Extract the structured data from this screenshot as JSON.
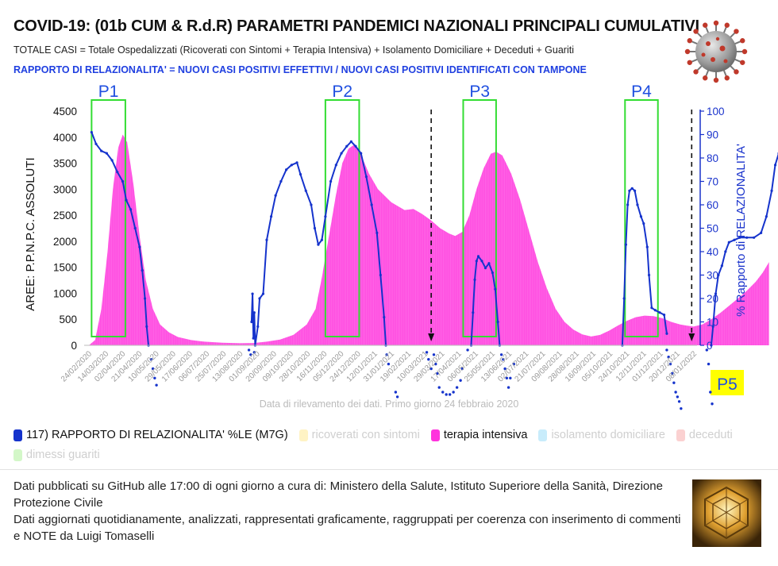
{
  "header": {
    "title": "COVID-19: (01b CUM & R.d.R) PARAMETRI PANDEMICI NAZIONALI PRINCIPALI CUMULATIVI",
    "subtitle": "TOTALE CASI = Totale Ospedalizzati (Ricoverati con Sintomi + Terapia Intensiva) + Isolamento Domiciliare + Deceduti + Guariti",
    "subtitle2": "RAPPORTO DI RELAZIONALITA' = NUOVI CASI POSITIVI EFFETTIVI / NUOVI CASI POSITIVI IDENTIFICATI CON TAMPONE",
    "virus_icon": "coronavirus-icon"
  },
  "chart_data": {
    "type": "area",
    "xlabel": "Data di rilevamento dei dati. Primo giorno 24 febbraio 2020",
    "ylabel_left": "AREE: P.P.N.P.C. ASSOLUTI",
    "ylabel_right": "% Rapporto di RELAZIONALITA'",
    "ylim_left": [
      0,
      4500
    ],
    "ylim_right": [
      0,
      100
    ],
    "yticks_left": [
      "0",
      "500",
      "1000",
      "1500",
      "2000",
      "2500",
      "3000",
      "3500",
      "4000",
      "4500"
    ],
    "yticks_right": [
      "0",
      "10",
      "20",
      "30",
      "40",
      "50",
      "60",
      "70",
      "80",
      "90",
      "100"
    ],
    "x_tick_labels": [
      "24/02/2020",
      "14/03/2020",
      "02/04/2020",
      "21/04/2020",
      "10/05/2020",
      "29/05/2020",
      "17/06/2020",
      "06/07/2020",
      "25/07/2020",
      "13/08/2020",
      "01/09/2020",
      "20/09/2020",
      "09/10/2020",
      "28/10/2020",
      "16/11/2020",
      "05/12/2020",
      "24/12/2020",
      "12/01/2021",
      "31/01/2021",
      "19/02/2021",
      "10/03/2021",
      "29/03/2021",
      "17/04/2021",
      "06/05/2021",
      "25/05/2021",
      "13/06/2021",
      "02/07/2021",
      "21/07/2021",
      "09/08/2021",
      "28/08/2021",
      "16/09/2021",
      "05/10/2021",
      "24/10/2021",
      "12/11/2021",
      "01/12/2021",
      "20/12/2021",
      "08/01/2022"
    ],
    "x_day_range": [
      0,
      684
    ],
    "period_labels": [
      "P1",
      "P2",
      "P3",
      "P4",
      "P5"
    ],
    "period_day_ranges": [
      [
        3,
        41
      ],
      [
        266,
        304
      ],
      [
        421,
        458
      ],
      [
        603,
        640
      ]
    ],
    "arrow_days": [
      385,
      678
    ],
    "grid": false,
    "legend_position": "bottom",
    "series": [
      {
        "name": "terapia intensiva",
        "axis": "left",
        "color": "#ff33dd",
        "points": [
          [
            0,
            0
          ],
          [
            7,
            100
          ],
          [
            14,
            700
          ],
          [
            21,
            1800
          ],
          [
            27,
            3000
          ],
          [
            33,
            3800
          ],
          [
            38,
            4050
          ],
          [
            43,
            3900
          ],
          [
            50,
            3100
          ],
          [
            57,
            2100
          ],
          [
            64,
            1250
          ],
          [
            72,
            700
          ],
          [
            80,
            400
          ],
          [
            90,
            250
          ],
          [
            100,
            160
          ],
          [
            115,
            100
          ],
          [
            130,
            70
          ],
          [
            150,
            50
          ],
          [
            170,
            40
          ],
          [
            185,
            45
          ],
          [
            200,
            70
          ],
          [
            215,
            110
          ],
          [
            230,
            200
          ],
          [
            245,
            400
          ],
          [
            255,
            700
          ],
          [
            262,
            1300
          ],
          [
            270,
            2100
          ],
          [
            278,
            2900
          ],
          [
            285,
            3500
          ],
          [
            292,
            3780
          ],
          [
            298,
            3850
          ],
          [
            305,
            3700
          ],
          [
            315,
            3300
          ],
          [
            325,
            3000
          ],
          [
            340,
            2750
          ],
          [
            355,
            2600
          ],
          [
            365,
            2620
          ],
          [
            375,
            2520
          ],
          [
            385,
            2400
          ],
          [
            395,
            2250
          ],
          [
            405,
            2150
          ],
          [
            412,
            2100
          ],
          [
            420,
            2180
          ],
          [
            428,
            2500
          ],
          [
            436,
            3000
          ],
          [
            444,
            3400
          ],
          [
            452,
            3680
          ],
          [
            458,
            3720
          ],
          [
            465,
            3650
          ],
          [
            475,
            3300
          ],
          [
            485,
            2800
          ],
          [
            495,
            2200
          ],
          [
            505,
            1600
          ],
          [
            515,
            1100
          ],
          [
            525,
            700
          ],
          [
            535,
            450
          ],
          [
            545,
            300
          ],
          [
            555,
            210
          ],
          [
            565,
            170
          ],
          [
            575,
            200
          ],
          [
            585,
            280
          ],
          [
            595,
            380
          ],
          [
            605,
            470
          ],
          [
            615,
            540
          ],
          [
            625,
            570
          ],
          [
            635,
            560
          ],
          [
            645,
            520
          ],
          [
            655,
            450
          ],
          [
            665,
            400
          ],
          [
            672,
            380
          ],
          [
            680,
            360
          ],
          [
            690,
            400
          ],
          [
            700,
            500
          ],
          [
            710,
            620
          ],
          [
            720,
            760
          ],
          [
            730,
            900
          ],
          [
            740,
            1050
          ],
          [
            750,
            1220
          ],
          [
            758,
            1400
          ],
          [
            765,
            1600
          ]
        ]
      },
      {
        "name": "117) RAPPORTO DI RELAZIONALITA' %LE (M7G)",
        "axis": "right",
        "color": "#1533cc",
        "segments": [
          [
            [
              3,
              91
            ],
            [
              8,
              86
            ],
            [
              14,
              83
            ],
            [
              20,
              82
            ],
            [
              26,
              79
            ],
            [
              32,
              74
            ],
            [
              38,
              70
            ],
            [
              42,
              62
            ],
            [
              47,
              58
            ],
            [
              52,
              50
            ],
            [
              57,
              42
            ],
            [
              60,
              32
            ],
            [
              63,
              20
            ],
            [
              65,
              8
            ],
            [
              67,
              0
            ]
          ],
          [
            [
              183,
              10
            ],
            [
              184,
              22
            ],
            [
              185,
              3
            ],
            [
              186,
              14
            ],
            [
              187,
              0
            ],
            [
              190,
              8
            ],
            [
              192,
              20
            ],
            [
              196,
              22
            ],
            [
              200,
              45
            ],
            [
              205,
              55
            ],
            [
              210,
              64
            ],
            [
              216,
              70
            ],
            [
              222,
              75
            ],
            [
              228,
              77
            ],
            [
              234,
              78
            ],
            [
              238,
              73
            ],
            [
              244,
              66
            ],
            [
              250,
              60
            ],
            [
              254,
              50
            ],
            [
              258,
              43
            ],
            [
              262,
              45
            ],
            [
              266,
              55
            ],
            [
              272,
              70
            ],
            [
              278,
              77
            ],
            [
              284,
              82
            ],
            [
              290,
              85
            ],
            [
              295,
              87
            ],
            [
              300,
              85
            ],
            [
              306,
              82
            ],
            [
              312,
              72
            ],
            [
              318,
              60
            ],
            [
              324,
              48
            ],
            [
              328,
              30
            ],
            [
              332,
              12
            ],
            [
              334,
              0
            ]
          ],
          [
            [
              430,
              0
            ],
            [
              432,
              14
            ],
            [
              434,
              28
            ],
            [
              436,
              36
            ],
            [
              438,
              38
            ],
            [
              442,
              36
            ],
            [
              446,
              33
            ],
            [
              450,
              35
            ],
            [
              454,
              31
            ],
            [
              457,
              24
            ],
            [
              460,
              10
            ],
            [
              462,
              0
            ]
          ],
          [
            [
              600,
              0
            ],
            [
              602,
              20
            ],
            [
              604,
              43
            ],
            [
              606,
              60
            ],
            [
              608,
              66
            ],
            [
              611,
              67
            ],
            [
              614,
              66
            ],
            [
              617,
              60
            ],
            [
              621,
              55
            ],
            [
              624,
              52
            ],
            [
              628,
              42
            ],
            [
              630,
              30
            ],
            [
              633,
              16
            ],
            [
              637,
              15
            ],
            [
              642,
              14
            ],
            [
              647,
              13
            ],
            [
              650,
              5
            ]
          ],
          [
            [
              700,
              0
            ],
            [
              702,
              8
            ],
            [
              705,
              22
            ],
            [
              708,
              30
            ],
            [
              712,
              34
            ],
            [
              716,
              40
            ],
            [
              720,
              44
            ],
            [
              726,
              45
            ],
            [
              732,
              46
            ],
            [
              740,
              46
            ],
            [
              748,
              46
            ],
            [
              756,
              48
            ],
            [
              762,
              55
            ],
            [
              768,
              66
            ],
            [
              772,
              77
            ],
            [
              776,
              82
            ],
            [
              780,
              82
            ],
            [
              784,
              78
            ]
          ]
        ],
        "below_zero_dots": [
          [
            70,
            -6
          ],
          [
            72,
            -10
          ],
          [
            74,
            -14
          ],
          [
            76,
            -17
          ],
          [
            180,
            -2
          ],
          [
            182,
            -4
          ],
          [
            186,
            -3
          ],
          [
            335,
            -4
          ],
          [
            337,
            -8
          ],
          [
            345,
            -20
          ],
          [
            347,
            -22
          ],
          [
            380,
            -3
          ],
          [
            382,
            -6
          ],
          [
            385,
            -10
          ],
          [
            388,
            -4
          ],
          [
            390,
            -8
          ],
          [
            392,
            -12
          ],
          [
            394,
            -18
          ],
          [
            398,
            -20
          ],
          [
            402,
            -21
          ],
          [
            406,
            -21
          ],
          [
            410,
            -20
          ],
          [
            414,
            -18
          ],
          [
            418,
            -15
          ],
          [
            420,
            -10
          ],
          [
            426,
            -2
          ],
          [
            464,
            -4
          ],
          [
            466,
            -6
          ],
          [
            468,
            -10
          ],
          [
            470,
            -14
          ],
          [
            472,
            -18
          ],
          [
            474,
            -14
          ],
          [
            478,
            -8
          ],
          [
            650,
            -2
          ],
          [
            652,
            -5
          ],
          [
            654,
            -8
          ],
          [
            656,
            -12
          ],
          [
            658,
            -16
          ],
          [
            660,
            -20
          ],
          [
            662,
            -22
          ],
          [
            664,
            -24
          ],
          [
            666,
            -27
          ],
          [
            695,
            -2
          ],
          [
            697,
            -8
          ],
          [
            699,
            -20
          ],
          [
            701,
            -25
          ]
        ]
      }
    ],
    "legend": [
      {
        "label": "117) RAPPORTO DI RELAZIONALITA' %LE (M7G)",
        "color": "#1533cc",
        "active": true
      },
      {
        "label": "ricoverati con sintomi",
        "color": "#fff3c4",
        "active": false
      },
      {
        "label": "terapia intensiva",
        "color": "#ff33dd",
        "active": true
      },
      {
        "label": "isolamento domiciliare",
        "color": "#c8ecfb",
        "active": false
      },
      {
        "label": "deceduti",
        "color": "#fbd1d1",
        "active": false
      },
      {
        "label": "dimessi guariti",
        "color": "#d3f7c8",
        "active": false
      }
    ]
  },
  "footer": {
    "line1": "Dati pubblicati su GitHub alle 17:00 di ogni giorno a cura di: Ministero della Salute, Istituto Superiore della Sanità, Direzione Protezione Civile",
    "line2": "Dati aggiornati quotidianamente, analizzati, rappresentati graficamente, raggruppati per coerenza con inserimento di commenti e NOTE da Luigi Tomaselli",
    "photo_icon": "author-photo"
  },
  "colors": {
    "area": "#ff33dd",
    "line": "#1533cc",
    "box": "#33dd33",
    "axis_right": "#1a33cc",
    "p5_bg": "#ffff00"
  }
}
